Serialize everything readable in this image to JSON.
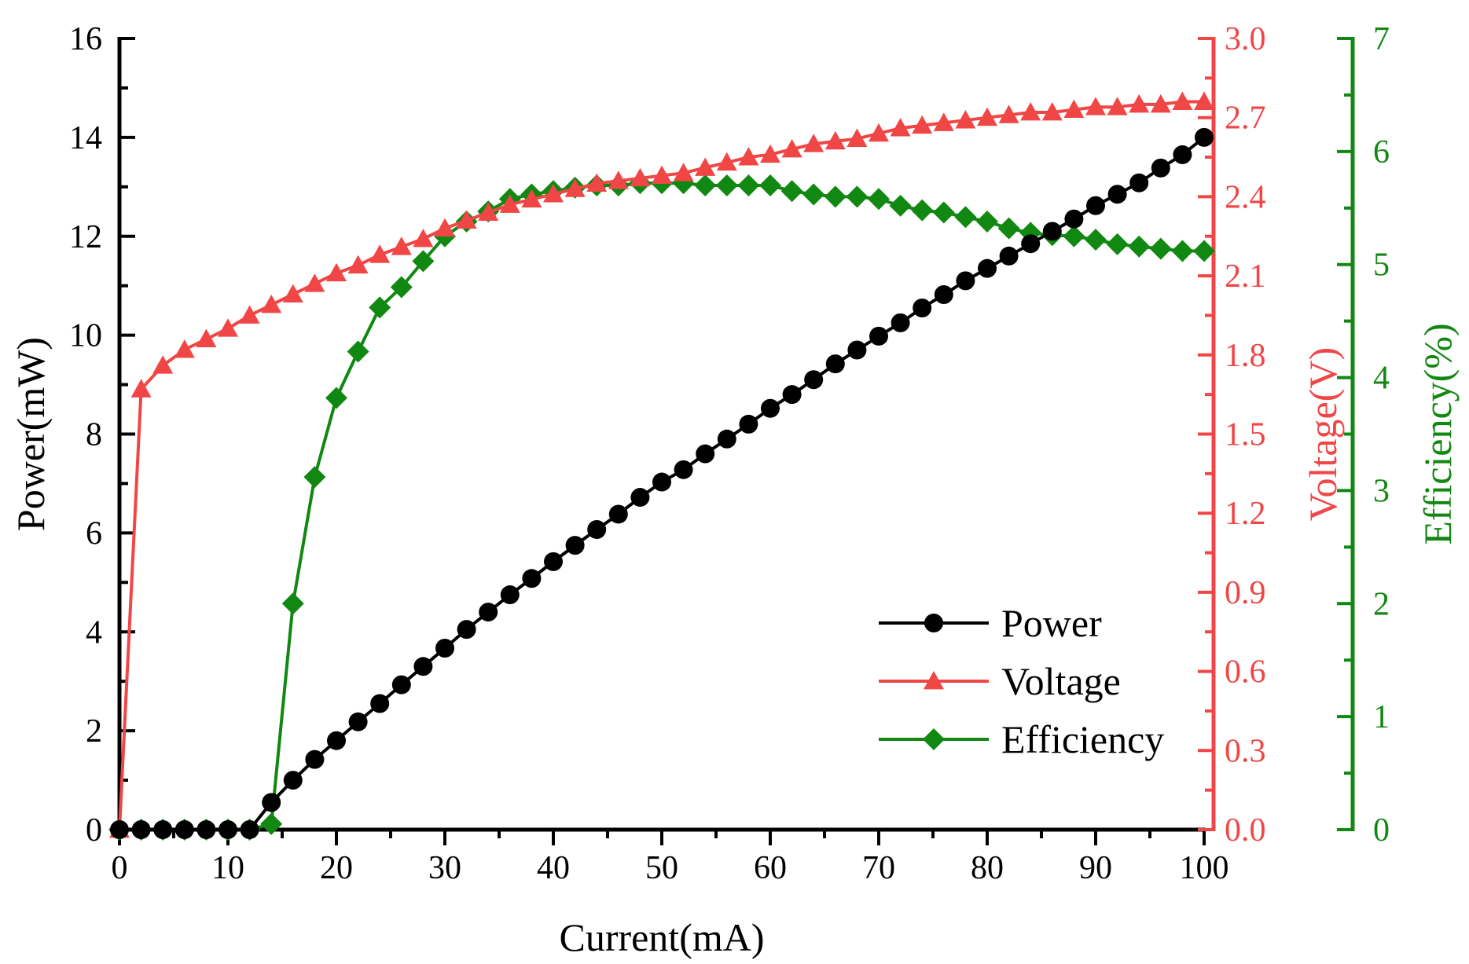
{
  "chart_data": {
    "type": "line",
    "xlabel": "Current(mA)",
    "xlim": [
      0,
      100
    ],
    "xticks": [
      "0",
      "10",
      "20",
      "30",
      "40",
      "50",
      "60",
      "70",
      "80",
      "90",
      "100"
    ],
    "axes": {
      "power": {
        "label": "Power(mW)",
        "range": [
          0,
          16
        ],
        "ticks": [
          "0",
          "2",
          "4",
          "6",
          "8",
          "10",
          "12",
          "14",
          "16"
        ],
        "color": "#000000"
      },
      "voltage": {
        "label": "Voltage(V)",
        "range": [
          0,
          3.0
        ],
        "ticks": [
          "0.0",
          "0.3",
          "0.6",
          "0.9",
          "1.2",
          "1.5",
          "1.8",
          "2.1",
          "2.4",
          "2.7",
          "3.0"
        ],
        "color": "#f04646"
      },
      "efficiency": {
        "label": "Efficiency(%)",
        "range": [
          0,
          7
        ],
        "ticks": [
          "0",
          "1",
          "2",
          "3",
          "4",
          "5",
          "6",
          "7"
        ],
        "color": "#118811"
      }
    },
    "x": [
      0,
      2,
      4,
      6,
      8,
      10,
      12,
      14,
      16,
      18,
      20,
      22,
      24,
      26,
      28,
      30,
      32,
      34,
      36,
      38,
      40,
      42,
      44,
      46,
      48,
      50,
      52,
      54,
      56,
      58,
      60,
      62,
      64,
      66,
      68,
      70,
      72,
      74,
      76,
      78,
      80,
      82,
      84,
      86,
      88,
      90,
      92,
      94,
      96,
      98,
      100
    ],
    "series": [
      {
        "name": "Power",
        "axis": "power",
        "color": "#000000",
        "marker": "circle",
        "values": [
          0,
          0,
          0,
          0,
          0,
          0,
          0,
          0.55,
          1.0,
          1.42,
          1.8,
          2.18,
          2.55,
          2.93,
          3.3,
          3.67,
          4.05,
          4.4,
          4.75,
          5.08,
          5.42,
          5.75,
          6.07,
          6.38,
          6.72,
          7.03,
          7.28,
          7.6,
          7.9,
          8.2,
          8.52,
          8.8,
          9.1,
          9.42,
          9.7,
          9.98,
          10.25,
          10.55,
          10.82,
          11.1,
          11.35,
          11.6,
          11.85,
          12.1,
          12.35,
          12.62,
          12.85,
          13.08,
          13.38,
          13.65,
          14.0
        ]
      },
      {
        "name": "Voltage",
        "axis": "voltage",
        "color": "#f04646",
        "marker": "triangle",
        "values": [
          0,
          1.67,
          1.76,
          1.82,
          1.86,
          1.9,
          1.95,
          1.99,
          2.03,
          2.07,
          2.11,
          2.14,
          2.18,
          2.21,
          2.24,
          2.28,
          2.31,
          2.34,
          2.37,
          2.39,
          2.41,
          2.43,
          2.45,
          2.46,
          2.47,
          2.48,
          2.49,
          2.51,
          2.53,
          2.55,
          2.56,
          2.58,
          2.6,
          2.61,
          2.62,
          2.64,
          2.66,
          2.67,
          2.68,
          2.69,
          2.7,
          2.71,
          2.72,
          2.72,
          2.73,
          2.74,
          2.74,
          2.75,
          2.75,
          2.76,
          2.76
        ]
      },
      {
        "name": "Efficiency",
        "axis": "efficiency",
        "color": "#118811",
        "marker": "diamond",
        "values": [
          0,
          0,
          0,
          0,
          0,
          0,
          0,
          0.05,
          2.0,
          3.12,
          3.82,
          4.23,
          4.62,
          4.8,
          5.03,
          5.25,
          5.38,
          5.47,
          5.58,
          5.62,
          5.65,
          5.68,
          5.7,
          5.7,
          5.72,
          5.72,
          5.72,
          5.7,
          5.7,
          5.7,
          5.7,
          5.65,
          5.62,
          5.6,
          5.6,
          5.58,
          5.52,
          5.48,
          5.46,
          5.42,
          5.38,
          5.32,
          5.28,
          5.26,
          5.25,
          5.22,
          5.18,
          5.16,
          5.14,
          5.12,
          5.12
        ]
      }
    ],
    "legend": {
      "placement": "lower-right",
      "entries": [
        "Power",
        "Voltage",
        "Efficiency"
      ]
    },
    "grid": false
  }
}
